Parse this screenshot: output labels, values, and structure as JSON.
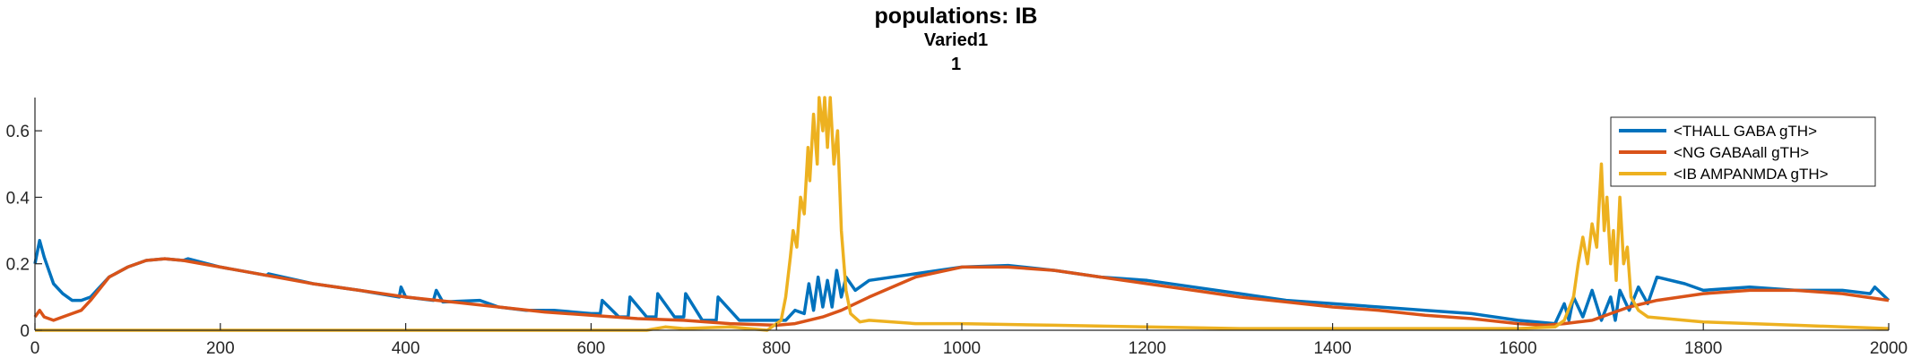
{
  "header": {
    "title": "populations: IB",
    "subtitle": "Varied1",
    "subtitle2": "1"
  },
  "chart_data": {
    "type": "line",
    "title": "populations: IB",
    "subtitle": [
      "Varied1",
      "1"
    ],
    "xlabel": "",
    "ylabel": "",
    "xlim": [
      0,
      2000
    ],
    "ylim": [
      0,
      0.7
    ],
    "xticks": [
      "0",
      "200",
      "400",
      "600",
      "800",
      "1000",
      "1200",
      "1400",
      "1600",
      "1800",
      "2000"
    ],
    "yticks": [
      "0",
      "0.2",
      "0.4",
      "0.6"
    ],
    "legend_position": "top-right",
    "grid": false,
    "series": [
      {
        "name": "<THALL GABA gTH>",
        "color": "#0072BD",
        "x": [
          0,
          5,
          10,
          20,
          30,
          40,
          50,
          60,
          80,
          100,
          120,
          140,
          160,
          165,
          200,
          250,
          252,
          300,
          350,
          393,
          395,
          400,
          430,
          433,
          440,
          480,
          500,
          530,
          560,
          600,
          610,
          612,
          630,
          640,
          642,
          660,
          670,
          672,
          690,
          700,
          702,
          720,
          735,
          737,
          760,
          790,
          810,
          820,
          830,
          835,
          840,
          845,
          850,
          855,
          860,
          865,
          870,
          875,
          885,
          900,
          950,
          1000,
          1050,
          1100,
          1150,
          1200,
          1250,
          1300,
          1350,
          1400,
          1450,
          1500,
          1550,
          1600,
          1640,
          1650,
          1655,
          1660,
          1670,
          1680,
          1690,
          1700,
          1705,
          1710,
          1720,
          1730,
          1740,
          1750,
          1780,
          1800,
          1850,
          1900,
          1950,
          1980,
          1985,
          2000
        ],
        "y": [
          0.2,
          0.27,
          0.22,
          0.14,
          0.11,
          0.09,
          0.09,
          0.1,
          0.16,
          0.19,
          0.21,
          0.215,
          0.21,
          0.215,
          0.19,
          0.165,
          0.17,
          0.14,
          0.12,
          0.1,
          0.13,
          0.1,
          0.09,
          0.12,
          0.085,
          0.09,
          0.07,
          0.06,
          0.06,
          0.05,
          0.05,
          0.09,
          0.04,
          0.04,
          0.1,
          0.04,
          0.04,
          0.11,
          0.04,
          0.04,
          0.11,
          0.03,
          0.03,
          0.1,
          0.03,
          0.03,
          0.03,
          0.06,
          0.05,
          0.14,
          0.06,
          0.16,
          0.07,
          0.15,
          0.07,
          0.18,
          0.1,
          0.16,
          0.12,
          0.15,
          0.17,
          0.19,
          0.195,
          0.18,
          0.16,
          0.15,
          0.13,
          0.11,
          0.09,
          0.08,
          0.07,
          0.06,
          0.05,
          0.03,
          0.02,
          0.08,
          0.03,
          0.1,
          0.04,
          0.12,
          0.03,
          0.1,
          0.03,
          0.12,
          0.06,
          0.13,
          0.08,
          0.16,
          0.14,
          0.12,
          0.13,
          0.12,
          0.12,
          0.11,
          0.13,
          0.09
        ]
      },
      {
        "name": "<NG GABAall gTH>",
        "color": "#D95319",
        "x": [
          0,
          5,
          10,
          20,
          30,
          40,
          50,
          60,
          80,
          100,
          120,
          140,
          160,
          200,
          250,
          300,
          350,
          400,
          450,
          500,
          550,
          600,
          650,
          700,
          750,
          800,
          820,
          850,
          870,
          900,
          950,
          1000,
          1050,
          1100,
          1150,
          1200,
          1250,
          1300,
          1350,
          1400,
          1450,
          1500,
          1550,
          1600,
          1630,
          1650,
          1680,
          1700,
          1720,
          1750,
          1800,
          1850,
          1900,
          1950,
          2000
        ],
        "y": [
          0.04,
          0.06,
          0.04,
          0.03,
          0.04,
          0.05,
          0.06,
          0.09,
          0.16,
          0.19,
          0.21,
          0.215,
          0.21,
          0.19,
          0.165,
          0.14,
          0.12,
          0.1,
          0.085,
          0.07,
          0.055,
          0.045,
          0.035,
          0.03,
          0.02,
          0.015,
          0.02,
          0.04,
          0.06,
          0.1,
          0.16,
          0.19,
          0.19,
          0.18,
          0.16,
          0.14,
          0.12,
          0.1,
          0.085,
          0.07,
          0.06,
          0.045,
          0.035,
          0.02,
          0.015,
          0.02,
          0.03,
          0.05,
          0.07,
          0.09,
          0.11,
          0.12,
          0.12,
          0.11,
          0.09
        ]
      },
      {
        "name": "<IB AMPANMDA gTH>",
        "color": "#EDB120",
        "x": [
          0,
          100,
          200,
          300,
          400,
          500,
          600,
          660,
          680,
          700,
          750,
          790,
          805,
          810,
          815,
          818,
          822,
          826,
          830,
          834,
          836,
          840,
          844,
          846,
          850,
          852,
          855,
          858,
          862,
          866,
          870,
          875,
          880,
          890,
          900,
          950,
          1000,
          1100,
          1200,
          1300,
          1400,
          1500,
          1600,
          1640,
          1650,
          1660,
          1665,
          1670,
          1675,
          1680,
          1685,
          1690,
          1693,
          1696,
          1700,
          1703,
          1706,
          1710,
          1714,
          1718,
          1722,
          1730,
          1740,
          1800,
          1900,
          2000
        ],
        "y": [
          0.0,
          0.0,
          0.0,
          0.0,
          0.0,
          0.0,
          0.0,
          0.0,
          0.01,
          0.005,
          0.01,
          0.0,
          0.03,
          0.1,
          0.22,
          0.3,
          0.25,
          0.4,
          0.35,
          0.55,
          0.45,
          0.65,
          0.5,
          0.7,
          0.6,
          0.7,
          0.55,
          0.7,
          0.5,
          0.6,
          0.3,
          0.12,
          0.05,
          0.025,
          0.03,
          0.02,
          0.02,
          0.015,
          0.01,
          0.005,
          0.005,
          0.005,
          0.005,
          0.01,
          0.03,
          0.1,
          0.2,
          0.28,
          0.2,
          0.32,
          0.25,
          0.5,
          0.3,
          0.4,
          0.2,
          0.3,
          0.15,
          0.4,
          0.2,
          0.25,
          0.1,
          0.06,
          0.04,
          0.025,
          0.015,
          0.005
        ]
      }
    ]
  }
}
